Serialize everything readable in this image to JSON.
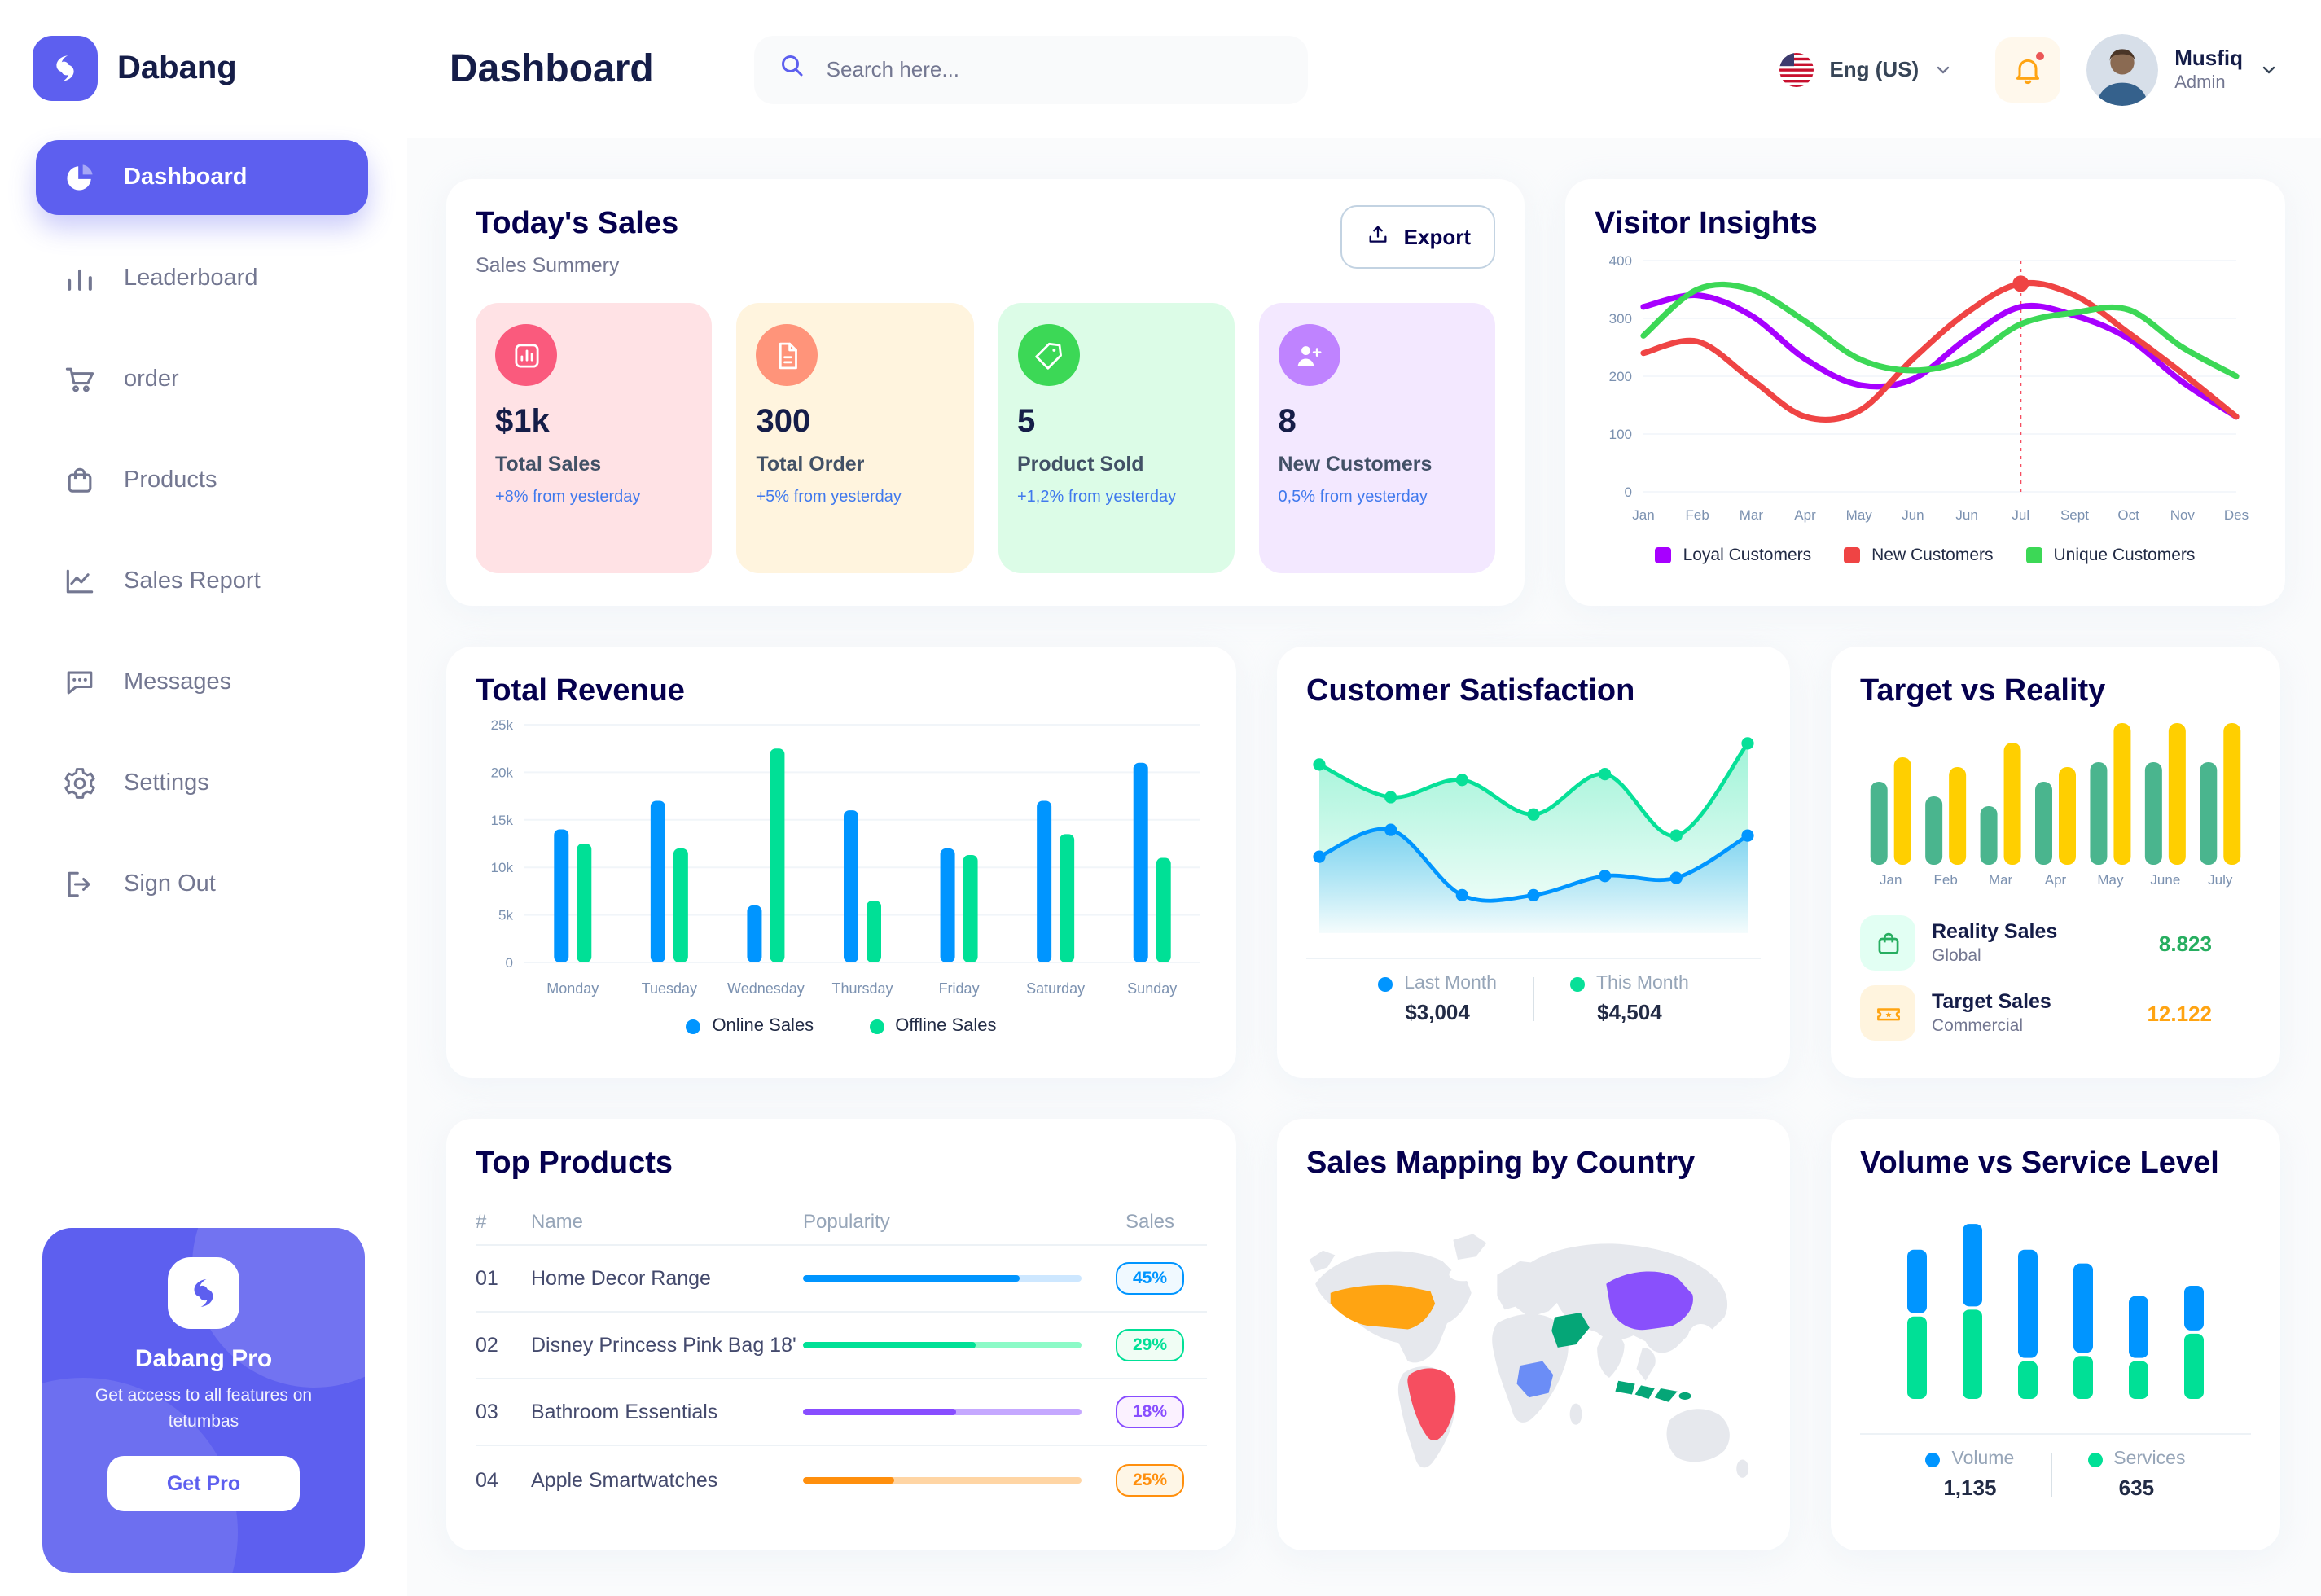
{
  "app": {
    "brand": "Dabang"
  },
  "header": {
    "page_title": "Dashboard",
    "search_placeholder": "Search here...",
    "language": "Eng (US)",
    "user_name": "Musfiq",
    "user_role": "Admin"
  },
  "sidebar": {
    "items": [
      {
        "label": "Dashboard",
        "icon": "pie-chart",
        "active": true
      },
      {
        "label": "Leaderboard",
        "icon": "bar-chart",
        "active": false
      },
      {
        "label": "order",
        "icon": "cart",
        "active": false
      },
      {
        "label": "Products",
        "icon": "shopping-bag",
        "active": false
      },
      {
        "label": "Sales Report",
        "icon": "line-chart",
        "active": false
      },
      {
        "label": "Messages",
        "icon": "message",
        "active": false
      },
      {
        "label": "Settings",
        "icon": "gear",
        "active": false
      },
      {
        "label": "Sign Out",
        "icon": "sign-out",
        "active": false
      }
    ],
    "promo": {
      "title": "Dabang Pro",
      "description": "Get access to all features on tetumbas",
      "button_label": "Get Pro"
    }
  },
  "today_sales": {
    "title": "Today's Sales",
    "subtitle": "Sales Summery",
    "export_label": "Export",
    "cards": [
      {
        "value": "$1k",
        "label": "Total Sales",
        "delta": "+8% from yesterday",
        "bg": "#FFE2E5",
        "icon_bg": "#FA5A7D",
        "icon": "bar-chart-box"
      },
      {
        "value": "300",
        "label": "Total Order",
        "delta": "+5% from yesterday",
        "bg": "#FFF4DE",
        "icon_bg": "#FF947A",
        "icon": "file-text"
      },
      {
        "value": "5",
        "label": "Product Sold",
        "delta": "+1,2% from yesterday",
        "bg": "#DCFCE7",
        "icon_bg": "#3CD856",
        "icon": "tag-check"
      },
      {
        "value": "8",
        "label": "New Customers",
        "delta": "0,5% from yesterday",
        "bg": "#F3E8FF",
        "icon_bg": "#BF83FF",
        "icon": "user-plus"
      }
    ]
  },
  "top_products": {
    "title": "Top Products",
    "columns": [
      "#",
      "Name",
      "Popularity",
      "Sales"
    ],
    "rows": [
      {
        "id": "01",
        "name": "Home Decor Range",
        "popularity": 78,
        "sales": "45%",
        "color": "#0095FF",
        "track": "#CDE7FF",
        "badge_bg": "#F0F9FF"
      },
      {
        "id": "02",
        "name": "Disney Princess Pink Bag 18'",
        "popularity": 62,
        "sales": "29%",
        "color": "#00E096",
        "track": "#8CFAC7",
        "badge_bg": "#F0FDF4"
      },
      {
        "id": "03",
        "name": "Bathroom Essentials",
        "popularity": 55,
        "sales": "18%",
        "color": "#884DFF",
        "track": "#C5A8FF",
        "badge_bg": "#FBF1FF"
      },
      {
        "id": "04",
        "name": "Apple Smartwatches",
        "popularity": 33,
        "sales": "25%",
        "color": "#FF8F0D",
        "track": "#FFD5A4",
        "badge_bg": "#FEF6E6"
      }
    ]
  },
  "chart_data": {
    "visitor_insights": {
      "type": "line",
      "title": "Visitor Insights",
      "x": [
        "Jan",
        "Feb",
        "Mar",
        "Apr",
        "May",
        "Jun",
        "Jun",
        "Jul",
        "Sept",
        "Oct",
        "Nov",
        "Des"
      ],
      "ylim": [
        0,
        400
      ],
      "yticks": [
        0,
        100,
        200,
        300,
        400
      ],
      "series": [
        {
          "name": "Loyal Customers",
          "color": "#A700FF",
          "values": [
            320,
            340,
            305,
            230,
            185,
            195,
            265,
            320,
            305,
            265,
            190,
            130
          ]
        },
        {
          "name": "New Customers",
          "color": "#EF4444",
          "values": [
            240,
            260,
            195,
            130,
            140,
            230,
            310,
            360,
            340,
            275,
            205,
            130
          ]
        },
        {
          "name": "Unique Customers",
          "color": "#3CD856",
          "values": [
            270,
            350,
            350,
            295,
            230,
            210,
            230,
            290,
            310,
            315,
            250,
            200
          ]
        }
      ],
      "highlight": {
        "series": "New Customers",
        "index": 7
      }
    },
    "total_revenue": {
      "type": "bar",
      "title": "Total Revenue",
      "categories": [
        "Monday",
        "Tuesday",
        "Wednesday",
        "Thursday",
        "Friday",
        "Saturday",
        "Sunday"
      ],
      "ylim": [
        0,
        25000
      ],
      "ytick_labels": [
        "0",
        "5k",
        "10k",
        "15k",
        "20k",
        "25k"
      ],
      "series": [
        {
          "name": "Online Sales",
          "color": "#0095FF",
          "values": [
            14000,
            17000,
            6000,
            16000,
            12000,
            17000,
            21000
          ]
        },
        {
          "name": "Offline Sales",
          "color": "#00E096",
          "values": [
            12500,
            12000,
            22500,
            6500,
            11300,
            13500,
            11000
          ]
        }
      ]
    },
    "customer_satisfaction": {
      "type": "area",
      "title": "Customer Satisfaction",
      "ylim": [
        0,
        100
      ],
      "series": [
        {
          "name": "Last Month",
          "color": "#0095FF",
          "total": "$3,004",
          "values": [
            33,
            47,
            13,
            13,
            23,
            22,
            44
          ]
        },
        {
          "name": "This Month",
          "color": "#07E098",
          "total": "$4,504",
          "values": [
            81,
            64,
            73,
            55,
            76,
            44,
            92
          ]
        }
      ]
    },
    "target_vs_reality": {
      "type": "bar",
      "title": "Target vs Reality",
      "categories": [
        "Jan",
        "Feb",
        "Mar",
        "Apr",
        "May",
        "June",
        "July"
      ],
      "ylim": [
        0,
        15
      ],
      "series": [
        {
          "name": "Reality Sales",
          "color": "#4AB58E",
          "values": [
            8.5,
            7,
            6,
            8.5,
            10.5,
            10.5,
            10.5
          ]
        },
        {
          "name": "Target Sales",
          "color": "#FFCF00",
          "values": [
            11,
            10,
            12.5,
            10,
            14.5,
            14.5,
            14.5
          ]
        }
      ],
      "legend": [
        {
          "label": "Reality Sales",
          "sub": "Global",
          "value": "8.823",
          "value_color": "#27AE60",
          "icon": "shopping-bag",
          "icon_bg": "#E2FFF3",
          "icon_color": "#27AE60"
        },
        {
          "label": "Target Sales",
          "sub": "Commercial",
          "value": "12.122",
          "value_color": "#FFA412",
          "icon": "ticket",
          "icon_bg": "#FFF4DE",
          "icon_color": "#FFA412"
        }
      ]
    },
    "volume_service": {
      "type": "bar-stacked",
      "title": "Volume vs Service Level",
      "ylim": [
        0,
        110
      ],
      "series": [
        {
          "name": "Volume",
          "color": "#0095FF",
          "total": "1,135",
          "values": [
            37,
            48,
            63,
            52,
            36,
            26
          ]
        },
        {
          "name": "Services",
          "color": "#00E096",
          "total": "635",
          "values": [
            48,
            52,
            22,
            25,
            22,
            38
          ]
        }
      ]
    },
    "sales_map": {
      "type": "map",
      "title": "Sales Mapping by Country",
      "countries": [
        {
          "key": "usa",
          "name": "United States",
          "color": "#FFA412"
        },
        {
          "key": "brazil",
          "name": "Brazil",
          "color": "#F64E60"
        },
        {
          "key": "dr-congo",
          "name": "DR Congo",
          "color": "#6B8DF6"
        },
        {
          "key": "saudi-arabia",
          "name": "Saudi Arabia",
          "color": "#05A677"
        },
        {
          "key": "china",
          "name": "China",
          "color": "#8950FC"
        },
        {
          "key": "indonesia",
          "name": "Indonesia",
          "color": "#05A677"
        }
      ]
    }
  }
}
